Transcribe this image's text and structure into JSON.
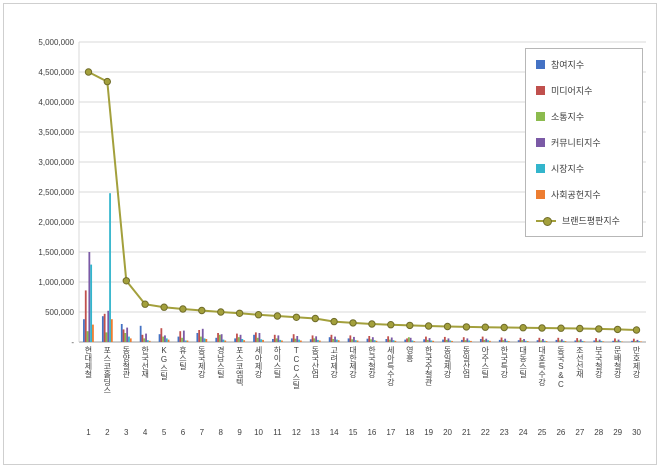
{
  "chart_data": {
    "type": "bar+line",
    "title": "",
    "legend_position": "top-right",
    "grid": true,
    "ylim": [
      0,
      5000000
    ],
    "ytick_step": 500000,
    "zero_label": "-",
    "axis_color": "#9e9e9e",
    "gridline_color": "#d9d9d9",
    "ranks": [
      1,
      2,
      3,
      4,
      5,
      6,
      7,
      8,
      9,
      10,
      11,
      12,
      13,
      14,
      15,
      16,
      17,
      18,
      19,
      20,
      21,
      22,
      23,
      24,
      25,
      26,
      27,
      28,
      29,
      30
    ],
    "categories": [
      "현대제철",
      "포스코홀딩스",
      "동양철관",
      "한국선재",
      "KG스틸",
      "휴스틸",
      "동국제강",
      "경남스틸",
      "포스코엠텍",
      "세아제강",
      "하이스틸",
      "TCC스틸",
      "동국산업",
      "고려제강",
      "대한제강",
      "한국철강",
      "세아특수강",
      "영흥",
      "한국주철관",
      "동일제강",
      "동일산업",
      "아주스틸",
      "한국특강",
      "대동스틸",
      "대호특수강",
      "동국S&C",
      "조선선재",
      "부국철강",
      "문배철강",
      "만호제강"
    ],
    "series": [
      {
        "name": "참여지수",
        "color": "#4472C4",
        "values": [
          380000,
          430000,
          300000,
          270000,
          130000,
          90000,
          150000,
          70000,
          60000,
          120000,
          50000,
          60000,
          45000,
          80000,
          60000,
          55000,
          50000,
          40000,
          45000,
          40000,
          35000,
          50000,
          35000,
          30000,
          30000,
          35000,
          25000,
          25000,
          20000,
          20000
        ]
      },
      {
        "name": "미디어지수",
        "color": "#C0504D",
        "values": [
          860000,
          470000,
          210000,
          120000,
          230000,
          180000,
          200000,
          150000,
          140000,
          160000,
          120000,
          130000,
          110000,
          120000,
          110000,
          100000,
          95000,
          60000,
          90000,
          85000,
          80000,
          90000,
          75000,
          70000,
          70000,
          70000,
          65000,
          65000,
          60000,
          55000
        ]
      },
      {
        "name": "소통지수",
        "color": "#8CBB4E",
        "values": [
          180000,
          160000,
          150000,
          60000,
          90000,
          70000,
          90000,
          120000,
          80000,
          70000,
          60000,
          55000,
          60000,
          50000,
          45000,
          45000,
          40000,
          80000,
          35000,
          35000,
          30000,
          35000,
          30000,
          30000,
          25000,
          25000,
          25000,
          20000,
          20000,
          18000
        ]
      },
      {
        "name": "커뮤니티지수",
        "color": "#7B5AA6",
        "values": [
          1500000,
          520000,
          240000,
          140000,
          110000,
          190000,
          220000,
          130000,
          120000,
          150000,
          110000,
          100000,
          95000,
          90000,
          85000,
          80000,
          75000,
          70000,
          65000,
          60000,
          60000,
          55000,
          55000,
          50000,
          50000,
          45000,
          45000,
          40000,
          40000,
          35000
        ]
      },
      {
        "name": "시장지수",
        "color": "#33B5CC",
        "values": [
          1290000,
          2480000,
          90000,
          30000,
          60000,
          25000,
          60000,
          40000,
          50000,
          45000,
          35000,
          40000,
          35000,
          40000,
          30000,
          30000,
          30000,
          25000,
          25000,
          25000,
          25000,
          30000,
          20000,
          20000,
          20000,
          20000,
          18000,
          18000,
          15000,
          15000
        ]
      },
      {
        "name": "사회공헌지수",
        "color": "#ED7D31",
        "values": [
          290000,
          380000,
          60000,
          20000,
          40000,
          25000,
          50000,
          25000,
          30000,
          35000,
          25000,
          25000,
          25000,
          30000,
          25000,
          20000,
          20000,
          15000,
          20000,
          18000,
          18000,
          20000,
          15000,
          15000,
          15000,
          15000,
          12000,
          12000,
          10000,
          10000
        ]
      }
    ],
    "line_series": {
      "name": "브랜드평판지수",
      "color": "#A3A03C",
      "marker_stroke": "#6F6C29",
      "values": [
        4500000,
        4340000,
        1020000,
        630000,
        580000,
        550000,
        525000,
        500000,
        478000,
        455000,
        433000,
        412000,
        392000,
        340000,
        318000,
        300000,
        288000,
        276000,
        266000,
        258000,
        251000,
        246000,
        242000,
        238000,
        234000,
        230000,
        225000,
        218000,
        210000,
        200000
      ]
    }
  }
}
